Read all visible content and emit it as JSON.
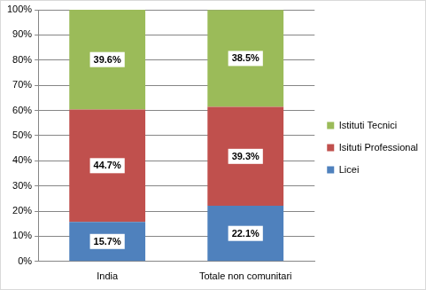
{
  "chart_data": {
    "type": "bar",
    "categories": [
      "India",
      "Totale non comunitari"
    ],
    "series": [
      {
        "name": "Licei",
        "color": "#4f81bd",
        "values": [
          15.7,
          22.1
        ],
        "value_labels": [
          "15.7%",
          "22.1%"
        ]
      },
      {
        "name": "Isituti Professionali",
        "color": "#c0504d",
        "values": [
          44.7,
          39.3
        ],
        "value_labels": [
          "44.7%",
          "39.3%"
        ]
      },
      {
        "name": "Istituti Tecnici",
        "color": "#9bbb59",
        "values": [
          39.6,
          38.5
        ],
        "value_labels": [
          "39.6%",
          "38.5%"
        ]
      }
    ],
    "stacked": true,
    "ylim": [
      0,
      100
    ],
    "yticks": [
      {
        "value": 0,
        "label": "0%"
      },
      {
        "value": 10,
        "label": "10%"
      },
      {
        "value": 20,
        "label": "20%"
      },
      {
        "value": 30,
        "label": "30%"
      },
      {
        "value": 40,
        "label": "40%"
      },
      {
        "value": 50,
        "label": "50%"
      },
      {
        "value": 60,
        "label": "60%"
      },
      {
        "value": 70,
        "label": "70%"
      },
      {
        "value": 80,
        "label": "80%"
      },
      {
        "value": 90,
        "label": "90%"
      },
      {
        "value": 100,
        "label": "100%"
      }
    ],
    "grid": true,
    "legend": "right",
    "data_labels": true
  }
}
